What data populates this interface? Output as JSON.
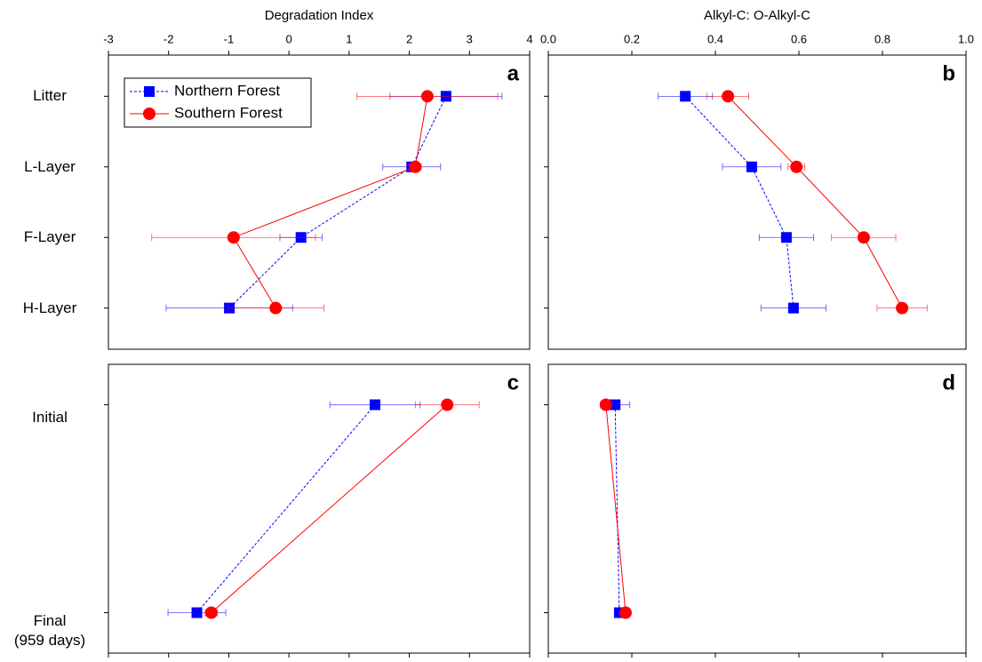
{
  "chart_data": [
    {
      "type": "line",
      "label": "a",
      "xlabel": "Degradation Index",
      "categories": [
        "Litter",
        "L-Layer",
        "F-Layer",
        "H-Layer"
      ],
      "xlim": [
        -3,
        4
      ],
      "xticks": [
        -3,
        -2,
        -1,
        0,
        1,
        2,
        3,
        4
      ],
      "tick_labels": true,
      "legend": "upper left",
      "series": [
        {
          "name": "Northern Forest",
          "color": "#0000ff",
          "marker": "square",
          "linestyle": "dashed",
          "values": [
            2.61,
            2.04,
            0.2,
            -0.99
          ],
          "errors": [
            0.93,
            0.48,
            0.35,
            1.05
          ]
        },
        {
          "name": "Southern Forest",
          "color": "#ff0000",
          "marker": "circle",
          "linestyle": "solid",
          "values": [
            2.3,
            2.1,
            -0.92,
            -0.22
          ],
          "errors": [
            1.17,
            0.1,
            1.36,
            0.8
          ]
        }
      ]
    },
    {
      "type": "line",
      "label": "b",
      "xlabel": "Alkyl-C: O-Alkyl-C",
      "categories": [
        null,
        null,
        null,
        null
      ],
      "xlim": [
        0,
        1
      ],
      "xticks": [
        {
          "value": 0,
          "label": "0.0"
        },
        0.2,
        0.4,
        0.6,
        0.8,
        {
          "value": 1,
          "label": "1.0"
        }
      ],
      "tick_labels": true,
      "series": [
        {
          "color": "#0000ff",
          "marker": "square",
          "linestyle": "dashed",
          "values": [
            0.328,
            0.487,
            0.57,
            0.587
          ],
          "errors": [
            0.065,
            0.07,
            0.065,
            0.078
          ]
        },
        {
          "color": "#ff0000",
          "marker": "circle",
          "linestyle": "solid",
          "values": [
            0.43,
            0.594,
            0.755,
            0.847
          ],
          "errors": [
            0.05,
            0.02,
            0.077,
            0.06
          ]
        }
      ]
    },
    {
      "type": "line",
      "label": "c",
      "categories": [
        "Initial",
        "Final\n(959 days)"
      ],
      "xlim": [
        -3,
        4
      ],
      "xticks": [
        -3,
        -2,
        -1,
        0,
        1,
        2,
        3,
        4
      ],
      "tick_labels": false,
      "series": [
        {
          "color": "#0000ff",
          "marker": "square",
          "linestyle": "dashed",
          "values": [
            1.43,
            -1.53
          ],
          "errors": [
            0.75,
            0.48
          ]
        },
        {
          "color": "#ff0000",
          "marker": "circle",
          "linestyle": "solid",
          "values": [
            2.63,
            -1.29
          ],
          "errors": [
            0.53,
            0.1
          ]
        }
      ]
    },
    {
      "type": "line",
      "label": "d",
      "categories": [
        null,
        null
      ],
      "xlim": [
        0,
        1
      ],
      "xticks": [
        0,
        0.2,
        0.4,
        0.6,
        0.8,
        1
      ],
      "tick_labels": false,
      "series": [
        {
          "color": "#0000ff",
          "marker": "square",
          "linestyle": "dashed",
          "values": [
            0.16,
            0.17
          ],
          "errors": [
            0.035,
            0.01
          ]
        },
        {
          "color": "#ff0000",
          "marker": "circle",
          "linestyle": "solid",
          "values": [
            0.138,
            0.185
          ],
          "errors": [
            0.01,
            0.01
          ]
        }
      ]
    }
  ]
}
